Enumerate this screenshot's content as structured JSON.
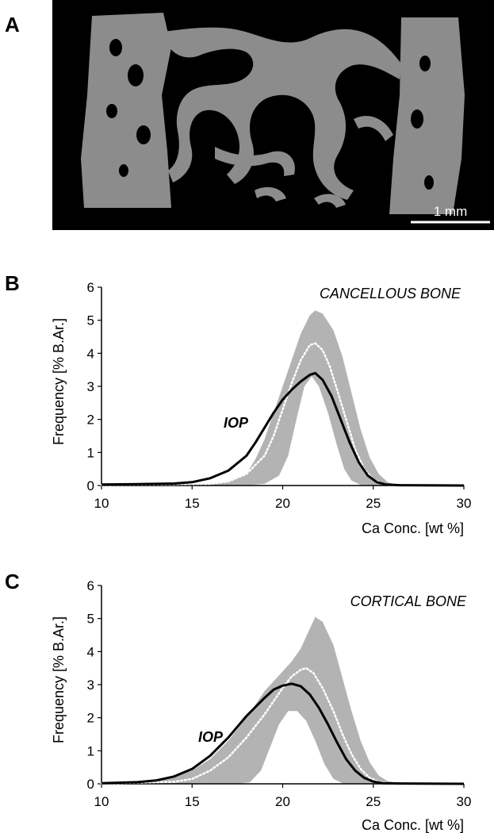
{
  "panels": {
    "a": "A",
    "b": "B",
    "c": "C"
  },
  "micrograph": {
    "scale_label": "1 mm",
    "bg_color": "#000000",
    "bone_color": "#8c8c8c"
  },
  "colors": {
    "band": "#b3b3b3",
    "iop_line": "#000000",
    "ref_line": "#ffffff"
  },
  "chart_data": [
    {
      "type": "area",
      "annotation": "CANCELLOUS BONE",
      "xlabel": "Ca Conc.  [wt %]",
      "ylabel": "Frequency [% B.Ar.]",
      "xlim": [
        10,
        30
      ],
      "ylim": [
        0,
        6
      ],
      "xticks": [
        10,
        15,
        20,
        25,
        30
      ],
      "yticks": [
        0,
        1,
        2,
        3,
        4,
        5,
        6
      ],
      "series_label": "IOP",
      "band_upper": [
        [
          10,
          0
        ],
        [
          14,
          0.02
        ],
        [
          16,
          0.05
        ],
        [
          17,
          0.12
        ],
        [
          18,
          0.35
        ],
        [
          18.5,
          0.8
        ],
        [
          19,
          1.4
        ],
        [
          19.5,
          2.2
        ],
        [
          20,
          3.0
        ],
        [
          20.5,
          3.8
        ],
        [
          21,
          4.6
        ],
        [
          21.5,
          5.15
        ],
        [
          21.8,
          5.3
        ],
        [
          22.2,
          5.2
        ],
        [
          22.8,
          4.7
        ],
        [
          23.3,
          3.9
        ],
        [
          23.8,
          2.8
        ],
        [
          24.3,
          1.7
        ],
        [
          24.8,
          0.85
        ],
        [
          25.3,
          0.35
        ],
        [
          25.8,
          0.1
        ],
        [
          26.3,
          0.02
        ],
        [
          27,
          0
        ]
      ],
      "band_lower": [
        [
          10,
          0
        ],
        [
          18,
          0
        ],
        [
          19,
          0.05
        ],
        [
          19.8,
          0.3
        ],
        [
          20.3,
          0.9
        ],
        [
          20.8,
          2.1
        ],
        [
          21.2,
          3.0
        ],
        [
          21.6,
          3.3
        ],
        [
          22,
          3.0
        ],
        [
          22.5,
          2.2
        ],
        [
          23,
          1.2
        ],
        [
          23.4,
          0.5
        ],
        [
          23.8,
          0.15
        ],
        [
          24.3,
          0.02
        ],
        [
          25,
          0
        ],
        [
          30,
          0
        ]
      ],
      "mean_line": [
        [
          10,
          0.02
        ],
        [
          16,
          0.05
        ],
        [
          17,
          0.12
        ],
        [
          18,
          0.35
        ],
        [
          19,
          0.9
        ],
        [
          19.5,
          1.5
        ],
        [
          20,
          2.3
        ],
        [
          20.5,
          3.1
        ],
        [
          21,
          3.8
        ],
        [
          21.5,
          4.25
        ],
        [
          21.8,
          4.3
        ],
        [
          22.2,
          4.1
        ],
        [
          22.6,
          3.6
        ],
        [
          23,
          2.9
        ],
        [
          23.5,
          2.0
        ],
        [
          24,
          1.1
        ],
        [
          24.5,
          0.5
        ],
        [
          25,
          0.18
        ],
        [
          25.5,
          0.05
        ],
        [
          26,
          0.01
        ],
        [
          27,
          0
        ]
      ],
      "iop_line": [
        [
          10,
          0.03
        ],
        [
          12,
          0.04
        ],
        [
          14,
          0.06
        ],
        [
          15,
          0.1
        ],
        [
          16,
          0.22
        ],
        [
          17,
          0.45
        ],
        [
          18,
          0.9
        ],
        [
          18.5,
          1.3
        ],
        [
          19,
          1.75
        ],
        [
          19.5,
          2.2
        ],
        [
          20,
          2.6
        ],
        [
          20.5,
          2.9
        ],
        [
          21,
          3.15
        ],
        [
          21.5,
          3.35
        ],
        [
          21.8,
          3.4
        ],
        [
          22.2,
          3.2
        ],
        [
          22.7,
          2.7
        ],
        [
          23.2,
          2.0
        ],
        [
          23.7,
          1.3
        ],
        [
          24.2,
          0.7
        ],
        [
          24.7,
          0.3
        ],
        [
          25.2,
          0.1
        ],
        [
          25.7,
          0.03
        ],
        [
          26.5,
          0.01
        ],
        [
          30,
          0
        ]
      ]
    },
    {
      "type": "area",
      "annotation": "CORTICAL BONE",
      "xlabel": "Ca Conc.  [wt %]",
      "ylabel": "Frequency [% B.Ar.]",
      "xlim": [
        10,
        30
      ],
      "ylim": [
        0,
        6
      ],
      "xticks": [
        10,
        15,
        20,
        25,
        30
      ],
      "yticks": [
        0,
        1,
        2,
        3,
        4,
        5,
        6
      ],
      "series_label": "IOP",
      "band_upper": [
        [
          10,
          0
        ],
        [
          12,
          0.03
        ],
        [
          13,
          0.08
        ],
        [
          14,
          0.2
        ],
        [
          15,
          0.4
        ],
        [
          16,
          0.75
        ],
        [
          17,
          1.3
        ],
        [
          18,
          2.0
        ],
        [
          19,
          2.8
        ],
        [
          20,
          3.4
        ],
        [
          20.5,
          3.7
        ],
        [
          21,
          4.1
        ],
        [
          21.5,
          4.7
        ],
        [
          21.8,
          5.05
        ],
        [
          22.2,
          4.9
        ],
        [
          22.8,
          4.2
        ],
        [
          23.3,
          3.2
        ],
        [
          23.8,
          2.2
        ],
        [
          24.3,
          1.3
        ],
        [
          24.8,
          0.65
        ],
        [
          25.3,
          0.25
        ],
        [
          25.8,
          0.08
        ],
        [
          26.5,
          0.02
        ],
        [
          27.5,
          0
        ]
      ],
      "band_lower": [
        [
          10,
          0
        ],
        [
          17.5,
          0
        ],
        [
          18.2,
          0.05
        ],
        [
          18.8,
          0.4
        ],
        [
          19.3,
          1.1
        ],
        [
          19.8,
          1.8
        ],
        [
          20.3,
          2.2
        ],
        [
          20.8,
          2.2
        ],
        [
          21.3,
          1.9
        ],
        [
          21.8,
          1.3
        ],
        [
          22.3,
          0.6
        ],
        [
          22.8,
          0.15
        ],
        [
          23.3,
          0.02
        ],
        [
          24,
          0
        ],
        [
          30,
          0
        ]
      ],
      "mean_line": [
        [
          10,
          0.01
        ],
        [
          14,
          0.06
        ],
        [
          15,
          0.15
        ],
        [
          16,
          0.4
        ],
        [
          17,
          0.8
        ],
        [
          18,
          1.4
        ],
        [
          19,
          2.1
        ],
        [
          19.5,
          2.5
        ],
        [
          20,
          2.9
        ],
        [
          20.5,
          3.25
        ],
        [
          21,
          3.45
        ],
        [
          21.3,
          3.5
        ],
        [
          21.7,
          3.35
        ],
        [
          22.2,
          2.9
        ],
        [
          22.8,
          2.2
        ],
        [
          23.3,
          1.5
        ],
        [
          23.8,
          0.9
        ],
        [
          24.3,
          0.45
        ],
        [
          24.8,
          0.18
        ],
        [
          25.3,
          0.06
        ],
        [
          26,
          0.01
        ],
        [
          27,
          0
        ]
      ],
      "iop_line": [
        [
          10,
          0.02
        ],
        [
          12,
          0.05
        ],
        [
          13,
          0.1
        ],
        [
          14,
          0.22
        ],
        [
          15,
          0.45
        ],
        [
          16,
          0.85
        ],
        [
          17,
          1.4
        ],
        [
          18,
          2.05
        ],
        [
          19,
          2.6
        ],
        [
          19.5,
          2.85
        ],
        [
          20,
          2.97
        ],
        [
          20.5,
          3.03
        ],
        [
          21,
          2.95
        ],
        [
          21.5,
          2.7
        ],
        [
          22,
          2.3
        ],
        [
          22.5,
          1.8
        ],
        [
          23,
          1.25
        ],
        [
          23.5,
          0.75
        ],
        [
          24,
          0.4
        ],
        [
          24.5,
          0.18
        ],
        [
          25,
          0.07
        ],
        [
          25.5,
          0.02
        ],
        [
          26.5,
          0.01
        ],
        [
          30,
          0
        ]
      ]
    }
  ]
}
